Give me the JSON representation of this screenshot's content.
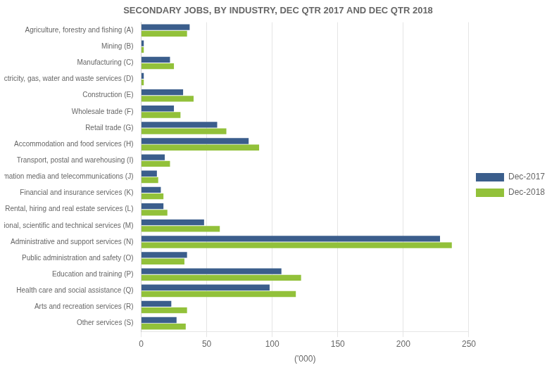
{
  "chart_data": {
    "type": "bar",
    "orientation": "horizontal",
    "title": "SECONDARY JOBS, BY INDUSTRY, DEC QTR 2017 AND DEC QTR 2018",
    "categories": [
      "Agriculture, forestry and fishing (A)",
      "Mining (B)",
      "Manufacturing (C)",
      "Electricity, gas, water and waste services (D)",
      "Construction (E)",
      "Wholesale trade (F)",
      "Retail trade (G)",
      "Accommodation and food services (H)",
      "Transport, postal and warehousing (I)",
      "Information media and telecommunications (J)",
      "Financial and insurance services (K)",
      "Rental, hiring and real estate services (L)",
      "Professional, scientific and technical services (M)",
      "Administrative and support services (N)",
      "Public administration and safety (O)",
      "Education and training (P)",
      "Health care and social assistance (Q)",
      "Arts and recreation services (R)",
      "Other services (S)"
    ],
    "series": [
      {
        "name": "Dec-2017",
        "color": "#3B5E8C",
        "values": [
          37,
          2,
          22,
          2,
          32,
          25,
          58,
          82,
          18,
          12,
          15,
          17,
          48,
          228,
          35,
          107,
          98,
          23,
          27
        ]
      },
      {
        "name": "Dec-2018",
        "color": "#92C13A",
        "values": [
          35,
          2,
          25,
          2,
          40,
          30,
          65,
          90,
          22,
          13,
          17,
          20,
          60,
          237,
          33,
          122,
          118,
          35,
          34
        ]
      }
    ],
    "xlabel": "('000)",
    "xlim": [
      0,
      250
    ],
    "xticks": [
      0,
      50,
      100,
      150,
      200,
      250
    ],
    "grid": true,
    "legend": "right"
  }
}
